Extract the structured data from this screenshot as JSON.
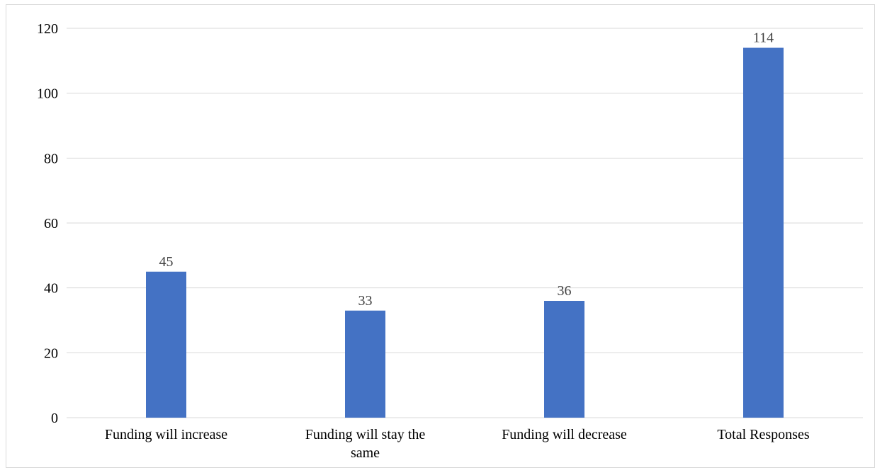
{
  "chart_data": {
    "type": "bar",
    "categories": [
      [
        "Funding will increase"
      ],
      [
        "Funding will stay the",
        "same"
      ],
      [
        "Funding will decrease"
      ],
      [
        "Total Responses"
      ]
    ],
    "values": [
      45,
      33,
      36,
      114
    ],
    "data_labels": [
      "45",
      "33",
      "36",
      "114"
    ],
    "title": "",
    "xlabel": "",
    "ylabel": "",
    "ylim": [
      0,
      120
    ],
    "yticks": [
      0,
      20,
      40,
      60,
      80,
      100,
      120
    ],
    "grid": true,
    "legend": "none",
    "bar_color": "#4472c4",
    "grid_color": "#d9d9d9"
  }
}
